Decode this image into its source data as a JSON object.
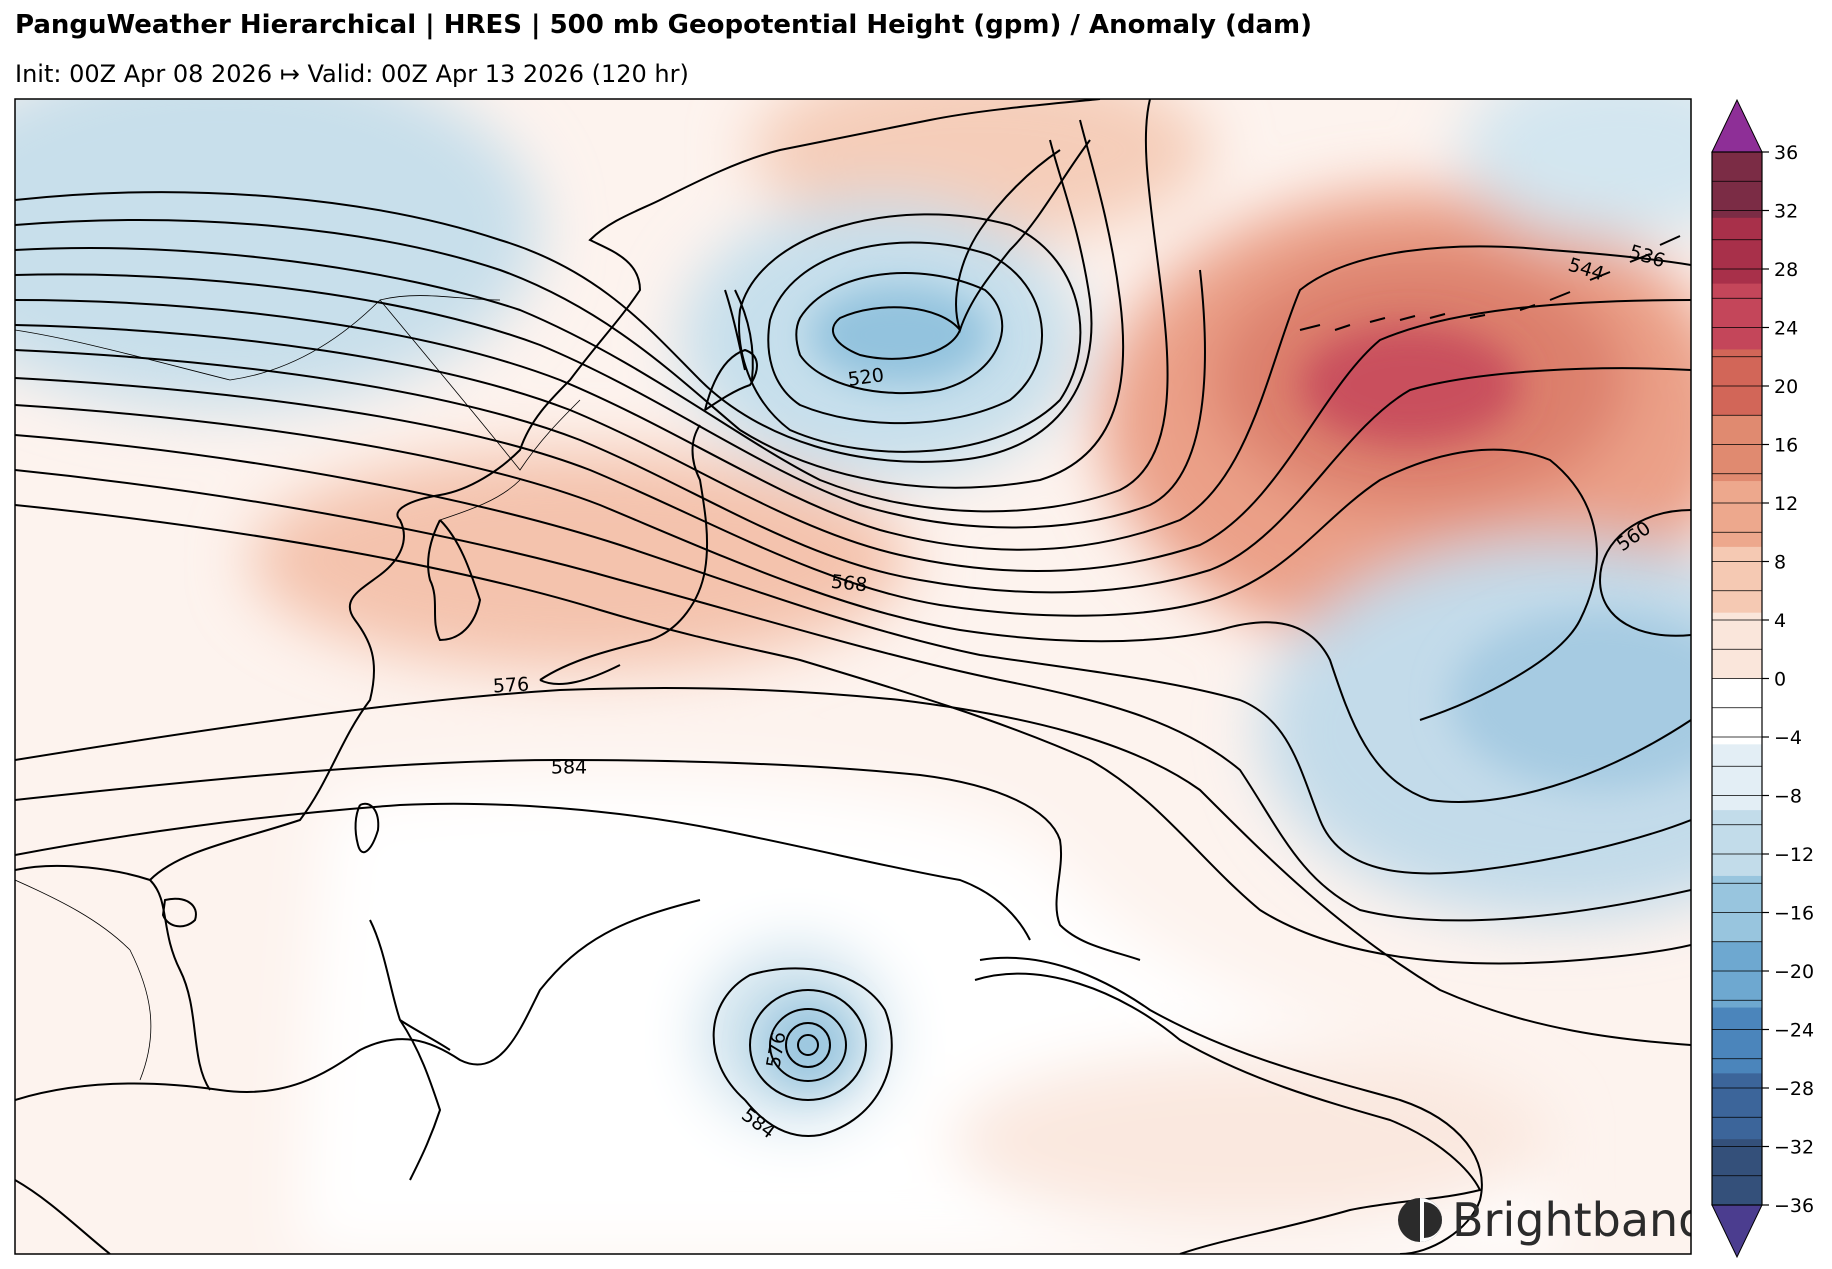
{
  "header": {
    "title": "PanguWeather Hierarchical | HRES | 500 mb Geopotential Height (gpm) / Anomaly (dam)",
    "subtitle": "Init: 00Z Apr 08 2026 ↦ Valid: 00Z Apr 13 2026 (120 hr)"
  },
  "brand": {
    "name": "Brightband",
    "logo_icon": "brightband-logo-icon"
  },
  "contour_labels": [
    {
      "text": "520"
    },
    {
      "text": "536"
    },
    {
      "text": "544"
    },
    {
      "text": "560"
    },
    {
      "text": "568"
    },
    {
      "text": "576"
    },
    {
      "text": "584"
    },
    {
      "text": "576"
    },
    {
      "text": "584"
    }
  ],
  "colorbar": {
    "ticks": [
      "36",
      "32",
      "28",
      "24",
      "20",
      "16",
      "12",
      "8",
      "4",
      "0",
      "−4",
      "−8",
      "−12",
      "−16",
      "−20",
      "−24",
      "−28",
      "−32",
      "−36"
    ],
    "colors": [
      "#7b2c45",
      "#a8304a",
      "#c4465a",
      "#d26658",
      "#e08a70",
      "#eda88d",
      "#f5c9b3",
      "#fae6db",
      "#ffffff",
      "#e3eef5",
      "#c2dcea",
      "#98c5de",
      "#6ea8d0",
      "#4b85bb",
      "#3c659a",
      "#34507a"
    ],
    "extend_max_color": "#8e2f97",
    "extend_min_color": "#4b3d8f"
  },
  "colors": {
    "positive_anomaly": "#e8957b",
    "strong_positive": "#c94b5a",
    "negative_anomaly": "#a9cfe4",
    "contour": "#000000"
  }
}
